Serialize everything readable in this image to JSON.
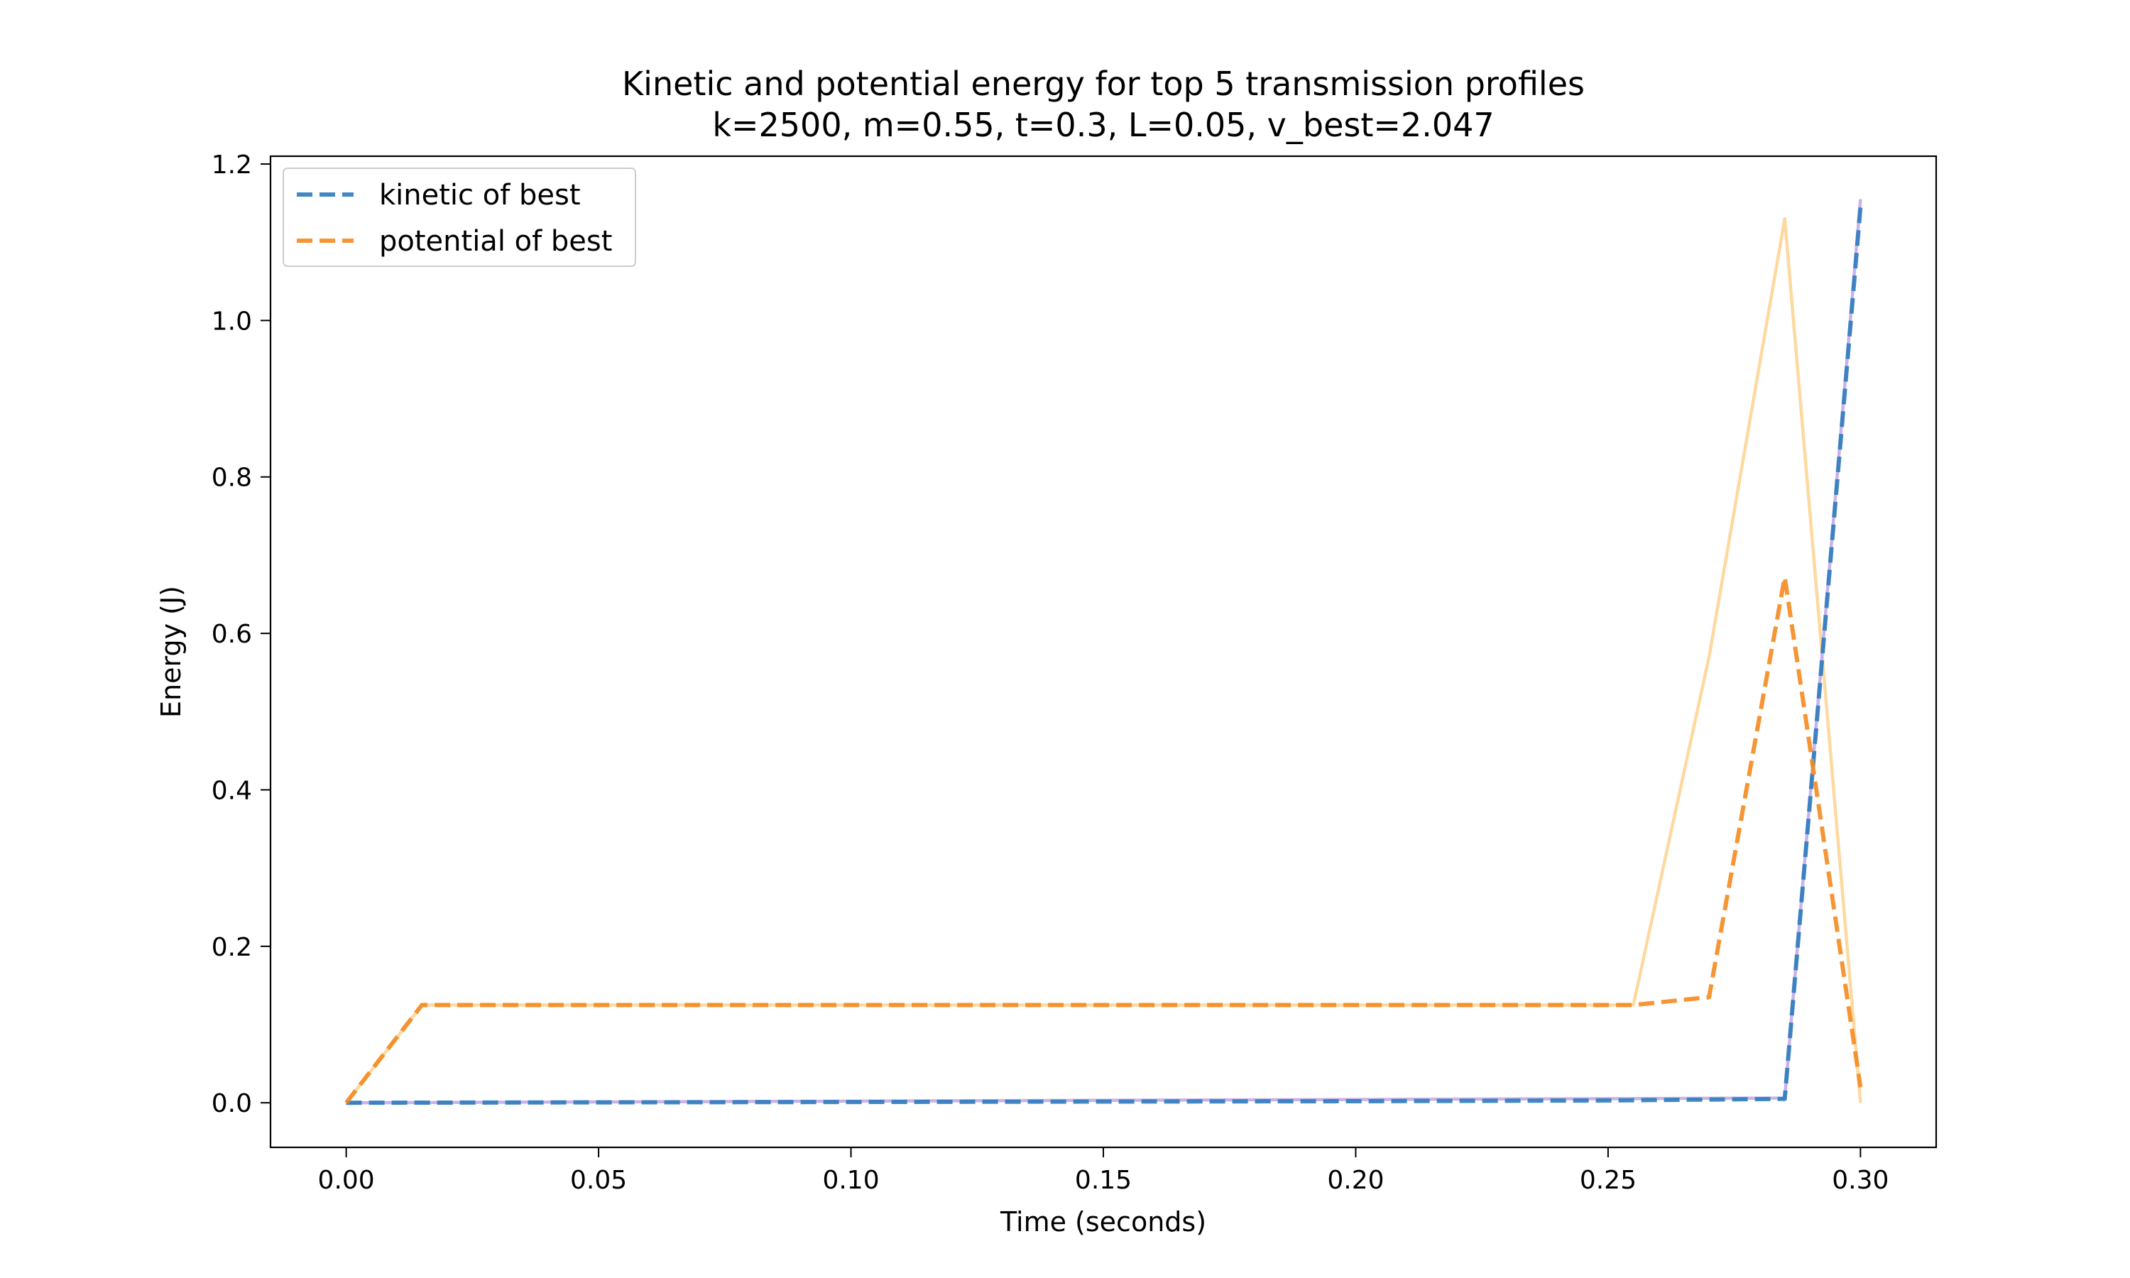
{
  "chart_data": {
    "type": "line",
    "title": "Kinetic and potential energy for top 5 transmission profiles",
    "subtitle": "k=2500, m=0.55, t=0.3, L=0.05, v_best=2.047",
    "xlabel": "Time (seconds)",
    "ylabel": "Energy (J)",
    "xlim": [
      -0.015,
      0.315
    ],
    "ylim": [
      -0.057,
      1.21
    ],
    "xticks": [
      0.0,
      0.05,
      0.1,
      0.15,
      0.2,
      0.25,
      0.3
    ],
    "xtick_labels": [
      "0.00",
      "0.05",
      "0.10",
      "0.15",
      "0.20",
      "0.25",
      "0.30"
    ],
    "yticks": [
      0.0,
      0.2,
      0.4,
      0.6,
      0.8,
      1.0,
      1.2
    ],
    "ytick_labels": [
      "0.0",
      "0.2",
      "0.4",
      "0.6",
      "0.8",
      "1.0",
      "1.2"
    ],
    "grid": false,
    "legend_position": "top-left",
    "series": [
      {
        "name": "",
        "role": "background",
        "color": "#fdd9a0",
        "dash": "solid",
        "opacity": 1.0,
        "x": [
          0.0,
          0.015,
          0.255,
          0.27,
          0.285,
          0.3
        ],
        "y": [
          0.0,
          0.125,
          0.125,
          0.57,
          1.13,
          0.0
        ]
      },
      {
        "name": "",
        "role": "background",
        "color": "#c9b3e6",
        "dash": "solid",
        "opacity": 1.0,
        "x": [
          0.0,
          0.285,
          0.3
        ],
        "y": [
          0.0,
          0.006,
          1.155
        ]
      },
      {
        "name": "kinetic of best",
        "role": "primary",
        "color": "#2f7bbf",
        "dash": "dashed",
        "opacity": 0.9,
        "x": [
          0.0,
          0.05,
          0.1,
          0.15,
          0.2,
          0.25,
          0.285,
          0.3
        ],
        "y": [
          0.0,
          0.0005,
          0.001,
          0.0015,
          0.002,
          0.003,
          0.005,
          1.145
        ]
      },
      {
        "name": "potential of best",
        "role": "primary",
        "color": "#f5891f",
        "dash": "dashed",
        "opacity": 0.9,
        "x": [
          0.0,
          0.015,
          0.255,
          0.27,
          0.285,
          0.3
        ],
        "y": [
          0.0,
          0.125,
          0.125,
          0.135,
          0.672,
          0.02
        ]
      }
    ]
  }
}
